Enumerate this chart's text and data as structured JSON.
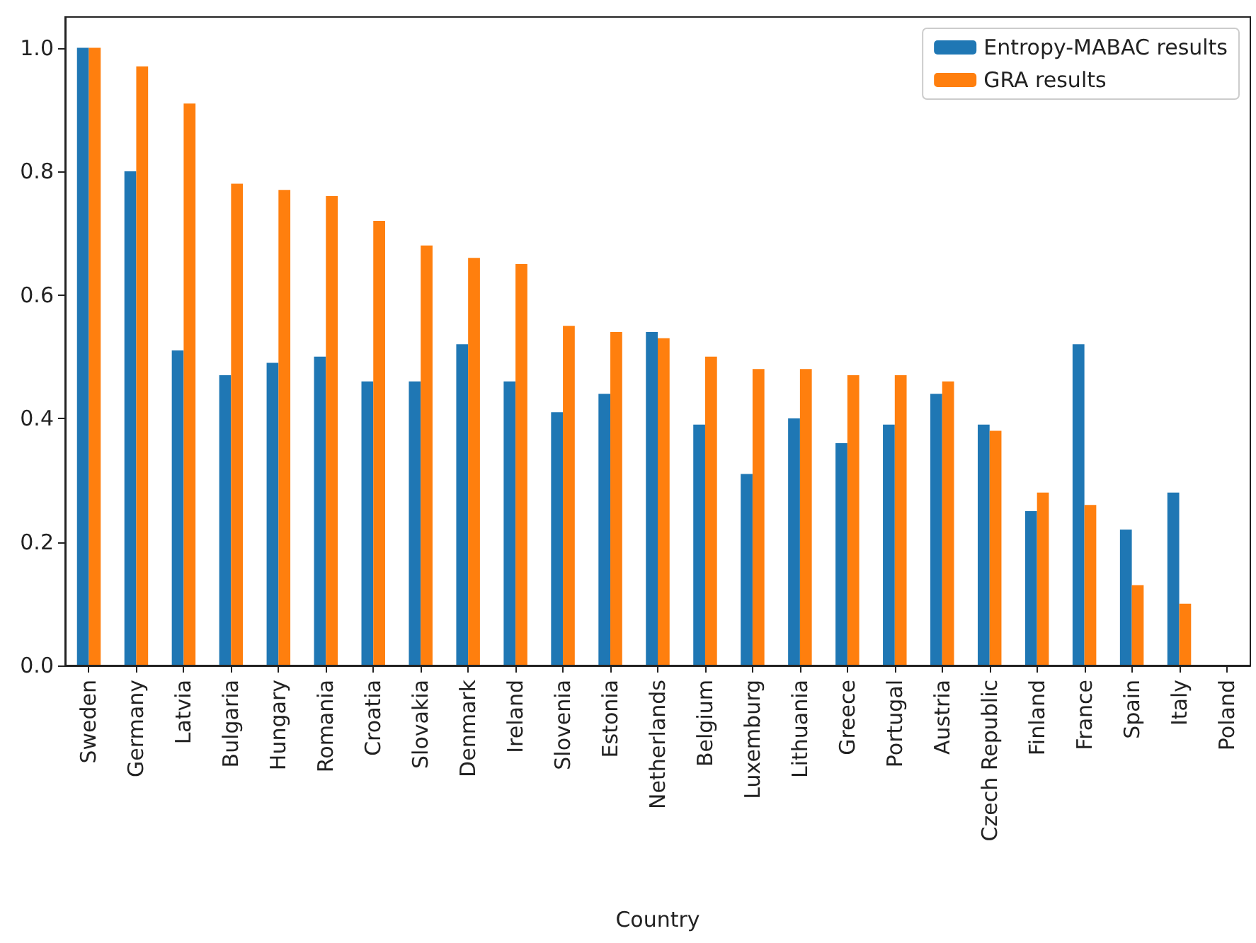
{
  "chart_data": {
    "type": "bar",
    "xlabel": "Country",
    "categories": [
      "Sweden",
      "Germany",
      "Latvia",
      "Bulgaria",
      "Hungary",
      "Romania",
      "Croatia",
      "Slovakia",
      "Denmark",
      "Ireland",
      "Slovenia",
      "Estonia",
      "Netherlands",
      "Belgium",
      "Luxemburg",
      "Lithuania",
      "Greece",
      "Portugal",
      "Austria",
      "Czech Republic",
      "Finland",
      "France",
      "Spain",
      "Italy",
      "Poland"
    ],
    "series": [
      {
        "name": "Entropy-MABAC results",
        "color": "#1f77b4",
        "values": [
          1.0,
          0.8,
          0.51,
          0.47,
          0.49,
          0.5,
          0.46,
          0.46,
          0.52,
          0.46,
          0.41,
          0.44,
          0.54,
          0.39,
          0.31,
          0.4,
          0.36,
          0.39,
          0.44,
          0.39,
          0.25,
          0.52,
          0.22,
          0.28,
          0
        ]
      },
      {
        "name": "GRA results",
        "color": "#ff7f0e",
        "values": [
          1.0,
          0.97,
          0.91,
          0.78,
          0.77,
          0.76,
          0.72,
          0.68,
          0.66,
          0.65,
          0.55,
          0.54,
          0.53,
          0.5,
          0.48,
          0.48,
          0.47,
          0.47,
          0.46,
          0.38,
          0.28,
          0.26,
          0.13,
          0.1,
          0
        ]
      }
    ],
    "ylim": [
      0,
      1.05
    ],
    "yticks": [
      {
        "value": 0,
        "label": "0.0"
      },
      {
        "value": 0.2,
        "label": "0.2"
      },
      {
        "value": 0.4,
        "label": "0.4"
      },
      {
        "value": 0.6,
        "label": "0.6"
      },
      {
        "value": 0.8,
        "label": "0.8"
      },
      {
        "value": 1.0,
        "label": "1.0"
      }
    ],
    "legend": "top right",
    "grid": false
  }
}
